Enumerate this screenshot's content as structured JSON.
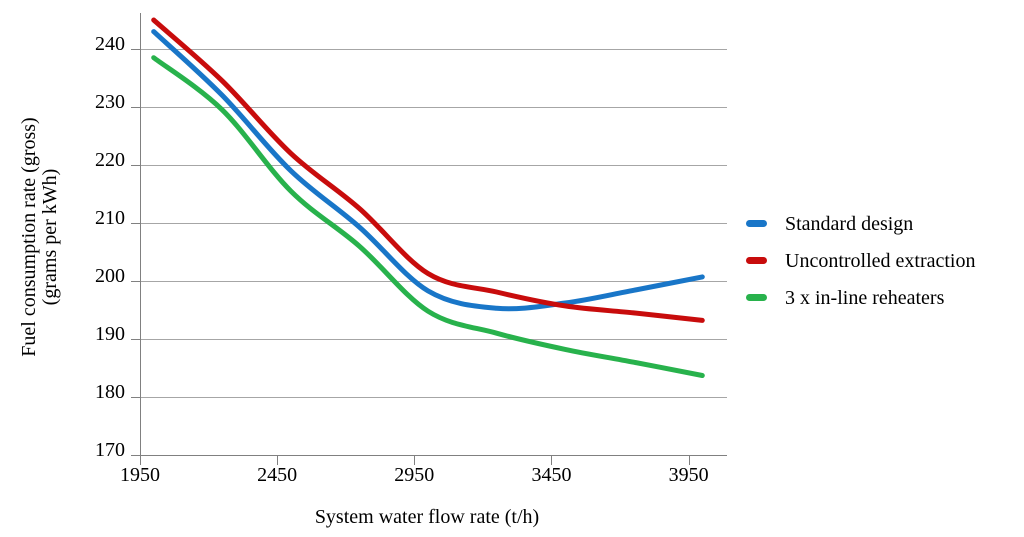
{
  "y_axis": {
    "title_line1": "Fuel consumption rate (gross)",
    "title_line2": "(grams per kWh)"
  },
  "x_axis": {
    "title": "System water flow rate (t/h)"
  },
  "legend": {
    "items": [
      {
        "label": "Standard design",
        "color": "#1976C8"
      },
      {
        "label": "Uncontrolled extraction",
        "color": "#C80C0C"
      },
      {
        "label": "3 x in-line reheaters",
        "color": "#28B24C"
      }
    ]
  },
  "chart_data": {
    "type": "line",
    "title": "",
    "xlabel": "System water flow rate (t/h)",
    "ylabel": "Fuel consumption rate (gross) (grams per kWh)",
    "x": [
      2000,
      2250,
      2500,
      2750,
      3000,
      3250,
      3500,
      3750,
      4000
    ],
    "series": [
      {
        "name": "Standard design",
        "color": "#1976C8",
        "values": [
          243,
          232,
          219,
          209.3,
          198.3,
          195.3,
          196.2,
          198.4,
          200.7
        ]
      },
      {
        "name": "Uncontrolled extraction",
        "color": "#C80C0C",
        "values": [
          245,
          234.5,
          222,
          212.5,
          201.3,
          198.1,
          195.7,
          194.5,
          193.2
        ]
      },
      {
        "name": "3 x in-line reheaters",
        "color": "#28B24C",
        "values": [
          238.5,
          229.5,
          215.5,
          206,
          194.8,
          191,
          188.2,
          186,
          183.7
        ]
      }
    ],
    "x_ticks": [
      1950,
      2450,
      2950,
      3450,
      3950
    ],
    "y_ticks": [
      170,
      180,
      190,
      200,
      210,
      220,
      230,
      240
    ],
    "xlim": [
      1950,
      4090
    ],
    "ylim": [
      170,
      246
    ],
    "grid": "horizontal-only",
    "smooth_lines": true,
    "legend_position": "right",
    "colors": {
      "grid": "#A6A6A6",
      "axis": "#808080",
      "text": "#000000"
    }
  }
}
